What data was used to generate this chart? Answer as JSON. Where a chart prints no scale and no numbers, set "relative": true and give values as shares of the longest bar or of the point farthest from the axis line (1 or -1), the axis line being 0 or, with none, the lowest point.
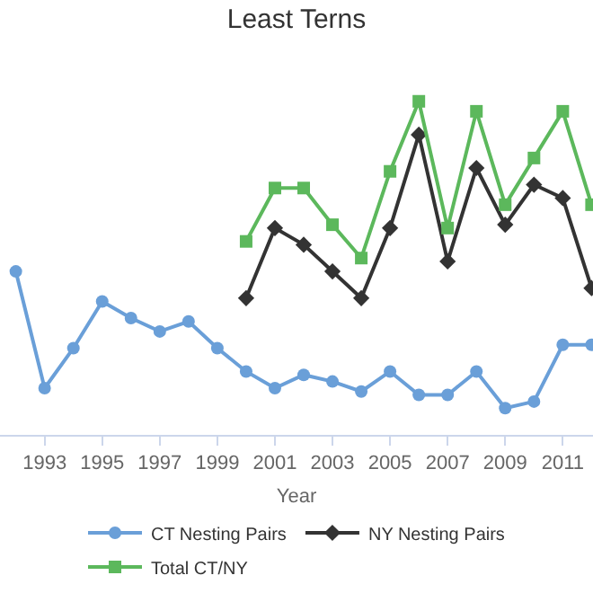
{
  "chart_data": {
    "type": "line",
    "title": "Least Terns",
    "xlabel": "Year",
    "relative": true,
    "xlim": [
      1991.45,
      2012.05
    ],
    "xticks": [
      1993,
      1995,
      1997,
      1999,
      2001,
      2003,
      2005,
      2007,
      2009,
      2011
    ],
    "legend": "bottom",
    "series": [
      {
        "name": "CT Nesting Pairs",
        "color": "#6a9fd8",
        "marker": "circle",
        "x": [
          1992,
          1993,
          1994,
          1995,
          1996,
          1997,
          1998,
          1999,
          2000,
          2001,
          2002,
          2003,
          2004,
          2005,
          2006,
          2007,
          2008,
          2009,
          2010,
          2011,
          2012
        ],
        "values": [
          0.49,
          0.14,
          0.26,
          0.4,
          0.35,
          0.31,
          0.34,
          0.26,
          0.19,
          0.14,
          0.18,
          0.16,
          0.13,
          0.19,
          0.12,
          0.12,
          0.19,
          0.08,
          0.1,
          0.27,
          0.27
        ]
      },
      {
        "name": "NY Nesting Pairs",
        "color": "#333333",
        "marker": "diamond",
        "x": [
          2000,
          2001,
          2002,
          2003,
          2004,
          2005,
          2006,
          2007,
          2008,
          2009,
          2010,
          2011,
          2012
        ],
        "values": [
          0.41,
          0.62,
          0.57,
          0.49,
          0.41,
          0.62,
          0.9,
          0.52,
          0.8,
          0.63,
          0.75,
          0.71,
          0.44
        ]
      },
      {
        "name": "Total CT/NY",
        "color": "#5cb85c",
        "marker": "square",
        "x": [
          2000,
          2001,
          2002,
          2003,
          2004,
          2005,
          2006,
          2007,
          2008,
          2009,
          2010,
          2011,
          2012
        ],
        "values": [
          0.58,
          0.74,
          0.74,
          0.63,
          0.53,
          0.79,
          1,
          0.62,
          0.97,
          0.69,
          0.83,
          0.97,
          0.69
        ]
      }
    ]
  }
}
